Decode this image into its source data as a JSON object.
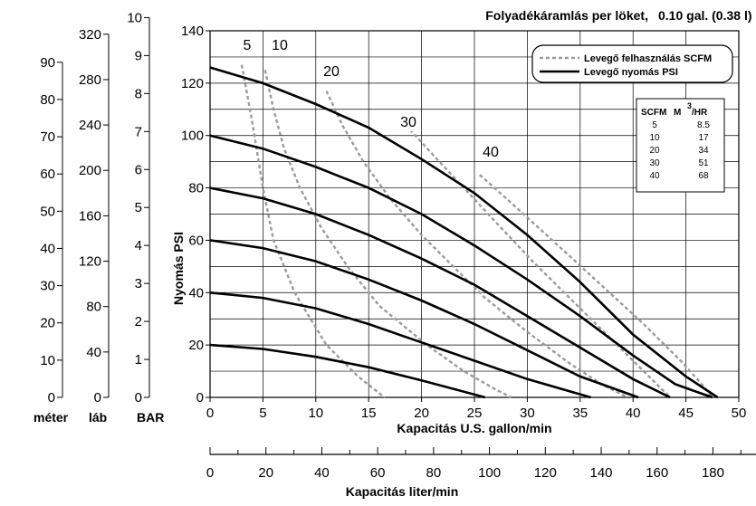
{
  "chart_data": {
    "type": "line",
    "title": "Folyadékáramlás per löket,",
    "title_value": "0.10 gal. (0.38 l)",
    "xlabel": "Kapacitás U.S. gallon/min",
    "ylabel": "Nyomás PSI",
    "xlim": [
      0,
      50
    ],
    "ylim": [
      0,
      140
    ],
    "x_ticks": [
      0,
      5,
      10,
      15,
      20,
      25,
      30,
      35,
      40,
      45,
      50
    ],
    "y_ticks": [
      0,
      20,
      40,
      60,
      80,
      100,
      120,
      140
    ],
    "grid": true,
    "legend_position": "top-right",
    "legend": [
      {
        "label": "Levegő felhasználás SCFM",
        "style": "dashed",
        "color": "#999999"
      },
      {
        "label": "Levegő nyomás PSI",
        "style": "solid",
        "color": "#000000"
      }
    ],
    "secondary_x_axis": {
      "label": "Kapacitás liter/min",
      "ticks": [
        0,
        20,
        40,
        60,
        80,
        100,
        120,
        140,
        160,
        180
      ],
      "gal_per_unit": 0.2642
    },
    "left_axes": [
      {
        "label": "méter",
        "ticks": [
          0,
          10,
          20,
          30,
          40,
          50,
          60,
          70,
          80,
          90
        ],
        "psi_per_unit": 1.4219
      },
      {
        "label": "láb",
        "ticks": [
          0,
          40,
          80,
          120,
          160,
          200,
          240,
          280,
          320
        ],
        "psi_per_unit": 0.4334
      },
      {
        "label": "BAR",
        "ticks": [
          0,
          1,
          2,
          3,
          4,
          5,
          6,
          7,
          8,
          9,
          10
        ],
        "psi_per_unit": 14.5038
      }
    ],
    "pressure_series": [
      {
        "x": [
          0,
          5,
          10,
          15,
          20,
          25,
          30,
          35,
          40,
          45,
          48
        ],
        "y": [
          126,
          120,
          112,
          103,
          91,
          78,
          62,
          44,
          24,
          8,
          0
        ]
      },
      {
        "x": [
          0,
          5,
          10,
          15,
          20,
          25,
          30,
          35,
          40,
          44,
          47.5
        ],
        "y": [
          100,
          95,
          88,
          80,
          70,
          58,
          45,
          31,
          16,
          5,
          0
        ]
      },
      {
        "x": [
          0,
          5,
          10,
          15,
          20,
          25,
          30,
          35,
          40,
          43.5
        ],
        "y": [
          80,
          76,
          70,
          62,
          53,
          43,
          31,
          19,
          7,
          0
        ]
      },
      {
        "x": [
          0,
          5,
          10,
          15,
          20,
          25,
          30,
          35,
          40.5
        ],
        "y": [
          60,
          57,
          52,
          45,
          37,
          28,
          18,
          8,
          0
        ]
      },
      {
        "x": [
          0,
          5,
          10,
          15,
          20,
          25,
          30,
          36
        ],
        "y": [
          40,
          38,
          34,
          28,
          21,
          14,
          7,
          0
        ]
      },
      {
        "x": [
          0,
          5,
          10,
          15,
          20,
          26
        ],
        "y": [
          20,
          18.5,
          15.5,
          11.5,
          6.5,
          0
        ]
      }
    ],
    "air_series": [
      {
        "scfm": "5",
        "x": [
          3,
          4,
          5,
          6,
          8,
          11,
          14,
          16.5
        ],
        "y": [
          127,
          105,
          80,
          60,
          40,
          20,
          8,
          0
        ]
      },
      {
        "scfm": "10",
        "x": [
          5.2,
          6,
          7,
          8.5,
          10.5,
          13,
          16,
          20.5,
          24,
          27,
          28.5
        ],
        "y": [
          125,
          110,
          95,
          80,
          65,
          50,
          35,
          20,
          10,
          3,
          0
        ]
      },
      {
        "scfm": "20",
        "x": [
          11,
          12.5,
          14.5,
          17,
          20,
          23,
          26,
          30,
          34,
          37,
          39.5
        ],
        "y": [
          117,
          104,
          90,
          76,
          62,
          50,
          38,
          25,
          13,
          5,
          0
        ]
      },
      {
        "scfm": "30",
        "x": [
          18.5,
          21,
          24,
          27,
          30.5,
          34,
          37.5,
          41,
          43.5
        ],
        "y": [
          104,
          93,
          80,
          67,
          52,
          38,
          24,
          10,
          0
        ]
      },
      {
        "scfm": "40",
        "x": [
          25.5,
          28,
          31,
          34,
          37.5,
          41,
          44.5,
          46.5,
          47.5
        ],
        "y": [
          85,
          76,
          65,
          54,
          41,
          28,
          14,
          5,
          0
        ]
      }
    ],
    "curve_labels": [
      "5",
      "10",
      "20",
      "30",
      "40"
    ],
    "conversion_table": {
      "headers": [
        "SCFM",
        "M",
        "3",
        "/HR"
      ],
      "rows": [
        [
          "5",
          "8.5"
        ],
        [
          "10",
          "17"
        ],
        [
          "20",
          "34"
        ],
        [
          "30",
          "51"
        ],
        [
          "40",
          "68"
        ]
      ]
    }
  }
}
